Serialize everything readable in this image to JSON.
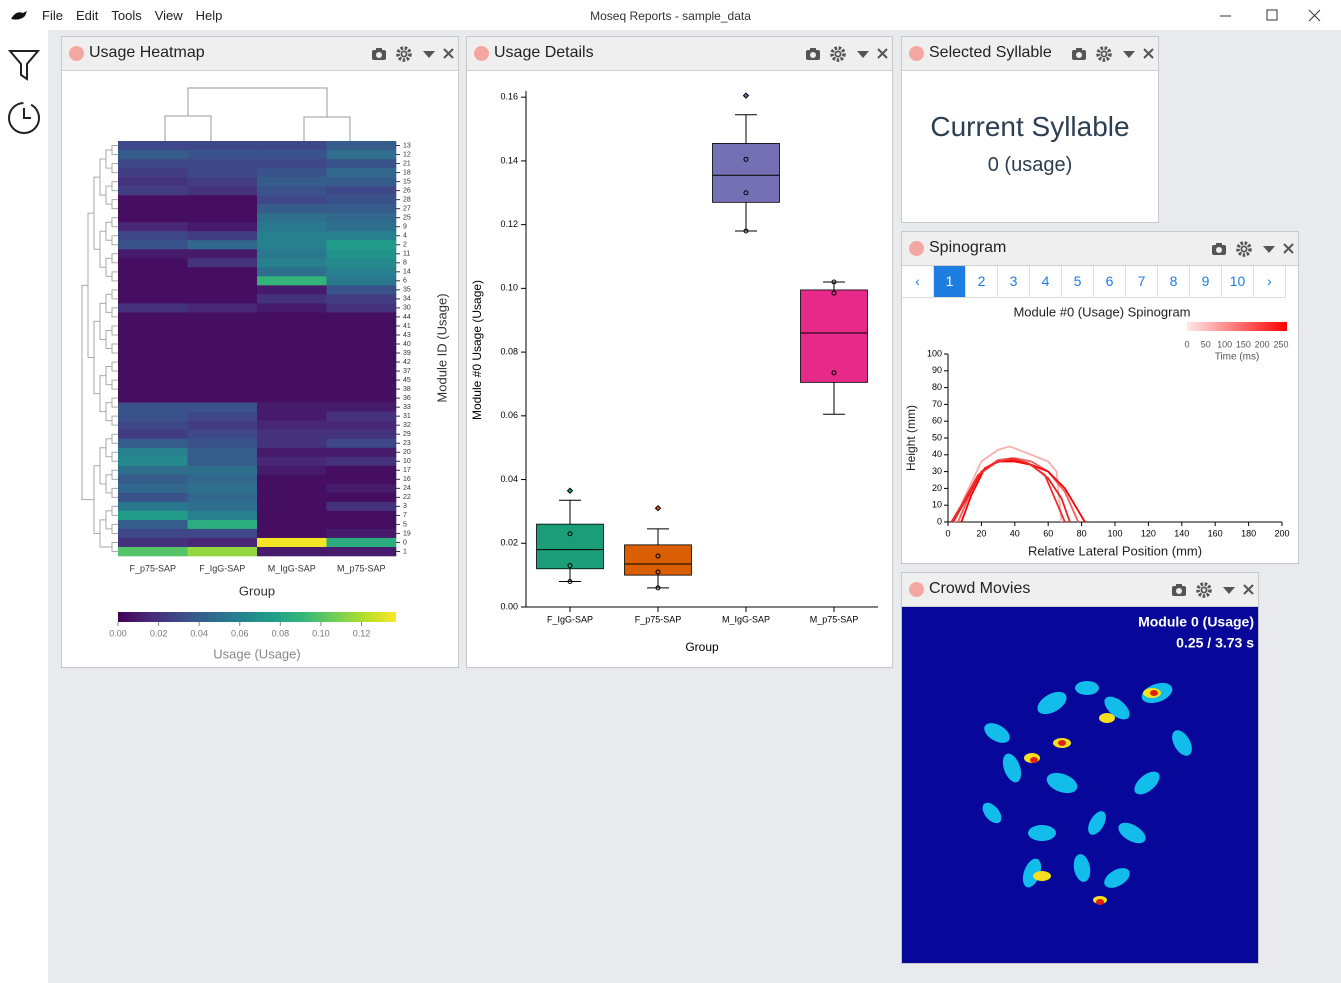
{
  "window": {
    "title": "Moseq Reports - sample_data",
    "menu": [
      "File",
      "Edit",
      "Tools",
      "View",
      "Help"
    ]
  },
  "heatmap_panel": {
    "title": "Usage Heatmap",
    "chart_data": {
      "type": "heatmap",
      "xlabel": "Group",
      "ylabel": "Module ID (Usage)",
      "colorbar_label": "Usage (Usage)",
      "categories": [
        "F_p75-SAP",
        "F_IgG-SAP",
        "M_IgG-SAP",
        "M_p75-SAP"
      ],
      "rows": [
        "13",
        "12",
        "21",
        "18",
        "15",
        "26",
        "28",
        "27",
        "25",
        "9",
        "4",
        "2",
        "11",
        "8",
        "14",
        "6",
        "35",
        "34",
        "30",
        "44",
        "41",
        "43",
        "40",
        "39",
        "42",
        "37",
        "45",
        "38",
        "36",
        "33",
        "31",
        "32",
        "29",
        "23",
        "20",
        "10",
        "17",
        "16",
        "24",
        "22",
        "3",
        "7",
        "5",
        "19",
        "0",
        "1"
      ],
      "values": [
        [
          0.03,
          0.03,
          0.03,
          0.04
        ],
        [
          0.04,
          0.035,
          0.035,
          0.05
        ],
        [
          0.03,
          0.03,
          0.03,
          0.035
        ],
        [
          0.025,
          0.03,
          0.035,
          0.045
        ],
        [
          0.02,
          0.025,
          0.04,
          0.04
        ],
        [
          0.025,
          0.02,
          0.035,
          0.03
        ],
        [
          0.005,
          0.005,
          0.03,
          0.035
        ],
        [
          0.005,
          0.005,
          0.04,
          0.04
        ],
        [
          0.005,
          0.005,
          0.05,
          0.045
        ],
        [
          0.015,
          0.01,
          0.055,
          0.05
        ],
        [
          0.03,
          0.025,
          0.06,
          0.06
        ],
        [
          0.035,
          0.045,
          0.06,
          0.075
        ],
        [
          0.01,
          0.01,
          0.055,
          0.07
        ],
        [
          0.005,
          0.02,
          0.06,
          0.065
        ],
        [
          0.005,
          0.005,
          0.05,
          0.06
        ],
        [
          0.005,
          0.005,
          0.09,
          0.055
        ],
        [
          0.005,
          0.005,
          0.01,
          0.035
        ],
        [
          0.005,
          0.005,
          0.02,
          0.025
        ],
        [
          0.02,
          0.015,
          0.01,
          0.02
        ],
        [
          0.005,
          0.005,
          0.005,
          0.005
        ],
        [
          0.005,
          0.005,
          0.005,
          0.005
        ],
        [
          0.005,
          0.005,
          0.005,
          0.005
        ],
        [
          0.005,
          0.005,
          0.005,
          0.005
        ],
        [
          0.005,
          0.005,
          0.005,
          0.005
        ],
        [
          0.005,
          0.005,
          0.005,
          0.005
        ],
        [
          0.005,
          0.005,
          0.005,
          0.005
        ],
        [
          0.005,
          0.005,
          0.005,
          0.005
        ],
        [
          0.005,
          0.005,
          0.005,
          0.005
        ],
        [
          0.005,
          0.005,
          0.005,
          0.005
        ],
        [
          0.035,
          0.035,
          0.01,
          0.01
        ],
        [
          0.035,
          0.03,
          0.01,
          0.02
        ],
        [
          0.03,
          0.025,
          0.015,
          0.015
        ],
        [
          0.025,
          0.03,
          0.02,
          0.02
        ],
        [
          0.04,
          0.035,
          0.02,
          0.03
        ],
        [
          0.06,
          0.04,
          0.01,
          0.01
        ],
        [
          0.065,
          0.04,
          0.015,
          0.02
        ],
        [
          0.05,
          0.05,
          0.01,
          0.005
        ],
        [
          0.04,
          0.045,
          0.005,
          0.005
        ],
        [
          0.045,
          0.05,
          0.005,
          0.01
        ],
        [
          0.035,
          0.045,
          0.005,
          0.005
        ],
        [
          0.055,
          0.05,
          0.005,
          0.02
        ],
        [
          0.075,
          0.06,
          0.005,
          0.005
        ],
        [
          0.04,
          0.085,
          0.005,
          0.005
        ],
        [
          0.03,
          0.03,
          0.005,
          0.01
        ],
        [
          0.02,
          0.015,
          0.135,
          0.085
        ],
        [
          0.1,
          0.115,
          0.01,
          0.01
        ]
      ],
      "clim": [
        0,
        0.137
      ],
      "cticks": [
        {
          "value": 0,
          "label": "0.00"
        },
        {
          "value": 0.02,
          "label": "0.02"
        },
        {
          "value": 0.04,
          "label": "0.04"
        },
        {
          "value": 0.06,
          "label": "0.06"
        },
        {
          "value": 0.08,
          "label": "0.08"
        },
        {
          "value": 0.1,
          "label": "0.10"
        },
        {
          "value": 0.12,
          "label": "0.12"
        }
      ]
    }
  },
  "details_panel": {
    "title": "Usage Details",
    "chart_data": {
      "type": "box",
      "xlabel": "Group",
      "ylabel": "Module #0 Usage (Usage)",
      "categories": [
        "F_IgG-SAP",
        "F_p75-SAP",
        "M_IgG-SAP",
        "M_p75-SAP"
      ],
      "boxes": [
        {
          "color": "#1b9e77",
          "whislo": 0.008,
          "q1": 0.012,
          "med": 0.018,
          "q3": 0.026,
          "whishi": 0.0335,
          "fliers": [
            0.0365
          ],
          "points": [
            0.008,
            0.013,
            0.023
          ]
        },
        {
          "color": "#d95f02",
          "whislo": 0.006,
          "q1": 0.01,
          "med": 0.0135,
          "q3": 0.0195,
          "whishi": 0.0245,
          "fliers": [
            0.031
          ],
          "points": [
            0.006,
            0.011,
            0.016
          ]
        },
        {
          "color": "#7570b3",
          "whislo": 0.118,
          "q1": 0.127,
          "med": 0.1355,
          "q3": 0.1455,
          "whishi": 0.1545,
          "fliers": [
            0.1605
          ],
          "points": [
            0.118,
            0.13,
            0.1405
          ]
        },
        {
          "color": "#e7298a",
          "whislo": 0.0605,
          "q1": 0.0705,
          "med": 0.086,
          "q3": 0.0995,
          "whishi": 0.102,
          "fliers": [],
          "points": [
            0.0735,
            0.0985,
            0.102
          ]
        }
      ],
      "ylim": [
        0,
        0.161
      ],
      "yticks": [
        {
          "value": 0,
          "label": "0.00"
        },
        {
          "value": 0.02,
          "label": "0.02"
        },
        {
          "value": 0.04,
          "label": "0.04"
        },
        {
          "value": 0.06,
          "label": "0.06"
        },
        {
          "value": 0.08,
          "label": "0.08"
        },
        {
          "value": 0.1,
          "label": "0.10"
        },
        {
          "value": 0.12,
          "label": "0.12"
        },
        {
          "value": 0.14,
          "label": "0.14"
        },
        {
          "value": 0.16,
          "label": "0.16"
        }
      ]
    }
  },
  "selected_panel": {
    "title": "Selected Syllable",
    "heading": "Current Syllable",
    "value": "0 (usage)"
  },
  "spinogram_panel": {
    "title": "Spinogram",
    "pagination": {
      "pages": [
        "‹",
        "1",
        "2",
        "3",
        "4",
        "5",
        "6",
        "7",
        "8",
        "9",
        "10",
        "›"
      ],
      "active": 1
    },
    "chart_data": {
      "type": "line",
      "title": "Module #0 (Usage) Spinogram",
      "xlabel": "Relative Lateral Position (mm)",
      "ylabel": "Height (mm)",
      "series": [
        {
          "color": "#f7b0b0",
          "x": [
            4,
            10,
            20,
            30,
            37,
            50,
            60,
            65,
            68
          ],
          "values": [
            0,
            15,
            36,
            43,
            45,
            40,
            36,
            30,
            0
          ]
        },
        {
          "color": "#f06060",
          "x": [
            6,
            12,
            20,
            30,
            40,
            50,
            60,
            70,
            78
          ],
          "values": [
            0,
            14,
            30,
            37,
            38,
            36,
            30,
            18,
            0
          ]
        },
        {
          "color": "#e82020",
          "x": [
            3,
            10,
            20,
            30,
            40,
            50,
            60,
            68,
            73
          ],
          "values": [
            0,
            12,
            30,
            36,
            37,
            34,
            26,
            14,
            0
          ]
        },
        {
          "color": "#ff0000",
          "x": [
            8,
            14,
            22,
            30,
            40,
            50,
            60,
            70,
            82
          ],
          "values": [
            0,
            16,
            32,
            36,
            36,
            34,
            30,
            20,
            0
          ]
        },
        {
          "color": "#f03030",
          "x": [
            2,
            8,
            18,
            28,
            38,
            48,
            58,
            64,
            70
          ],
          "values": [
            0,
            10,
            28,
            35,
            38,
            35,
            28,
            14,
            0
          ]
        }
      ],
      "xlim": [
        0,
        200
      ],
      "ylim": [
        0,
        100
      ],
      "xticks": [
        0,
        20,
        40,
        60,
        80,
        100,
        120,
        140,
        160,
        180,
        200
      ],
      "yticks": [
        0,
        10,
        20,
        30,
        40,
        50,
        60,
        70,
        80,
        90,
        100
      ],
      "legend": {
        "title": "Time (ms)",
        "ticks": [
          0,
          50,
          100,
          150,
          200,
          250
        ],
        "colors": [
          "#ffe8e8",
          "#ff0000"
        ]
      }
    }
  },
  "crowd_panel": {
    "title": "Crowd Movies",
    "caption": "Module 0 (Usage)",
    "time": "0.25 / 3.73 s"
  }
}
